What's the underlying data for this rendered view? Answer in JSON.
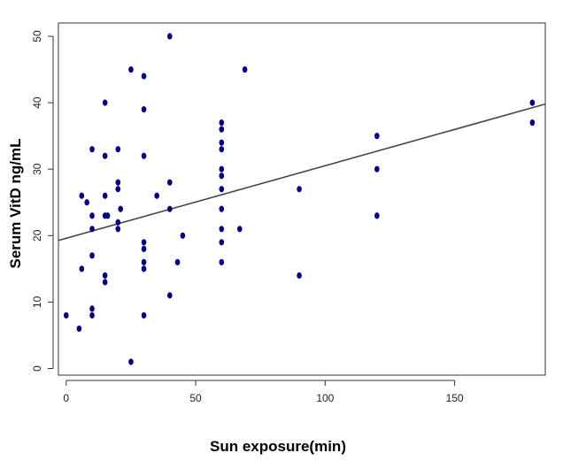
{
  "chart_data": {
    "type": "scatter",
    "title": "",
    "xlabel": "Sun exposure(min)",
    "ylabel": "Serum VitD ng/mL",
    "xlim": [
      -3,
      185
    ],
    "ylim": [
      -1,
      52
    ],
    "x_ticks": [
      0,
      50,
      100,
      150
    ],
    "y_ticks": [
      0,
      10,
      20,
      30,
      40,
      50
    ],
    "grid": false,
    "legend": "none",
    "point_color": "#00007f",
    "line_color": "#444444",
    "trend_line": {
      "intercept": 19.6,
      "slope": 0.1092
    },
    "points": [
      {
        "x": 0,
        "y": 8
      },
      {
        "x": 5,
        "y": 6
      },
      {
        "x": 6,
        "y": 15
      },
      {
        "x": 6,
        "y": 26
      },
      {
        "x": 8,
        "y": 25
      },
      {
        "x": 10,
        "y": 33
      },
      {
        "x": 10,
        "y": 23
      },
      {
        "x": 10,
        "y": 21
      },
      {
        "x": 10,
        "y": 17
      },
      {
        "x": 10,
        "y": 9
      },
      {
        "x": 10,
        "y": 8
      },
      {
        "x": 15,
        "y": 40
      },
      {
        "x": 15,
        "y": 32
      },
      {
        "x": 15,
        "y": 26
      },
      {
        "x": 15,
        "y": 23
      },
      {
        "x": 16,
        "y": 23
      },
      {
        "x": 15,
        "y": 14
      },
      {
        "x": 15,
        "y": 13
      },
      {
        "x": 20,
        "y": 33
      },
      {
        "x": 20,
        "y": 28
      },
      {
        "x": 20,
        "y": 27
      },
      {
        "x": 21,
        "y": 24
      },
      {
        "x": 20,
        "y": 22
      },
      {
        "x": 20,
        "y": 21
      },
      {
        "x": 25,
        "y": 45
      },
      {
        "x": 25,
        "y": 1
      },
      {
        "x": 30,
        "y": 44
      },
      {
        "x": 30,
        "y": 39
      },
      {
        "x": 30,
        "y": 32
      },
      {
        "x": 30,
        "y": 19
      },
      {
        "x": 30,
        "y": 18
      },
      {
        "x": 30,
        "y": 16
      },
      {
        "x": 30,
        "y": 15
      },
      {
        "x": 30,
        "y": 8
      },
      {
        "x": 35,
        "y": 26
      },
      {
        "x": 40,
        "y": 50
      },
      {
        "x": 40,
        "y": 28
      },
      {
        "x": 40,
        "y": 24
      },
      {
        "x": 40,
        "y": 11
      },
      {
        "x": 43,
        "y": 16
      },
      {
        "x": 45,
        "y": 20
      },
      {
        "x": 60,
        "y": 37
      },
      {
        "x": 60,
        "y": 36
      },
      {
        "x": 60,
        "y": 34
      },
      {
        "x": 60,
        "y": 33
      },
      {
        "x": 60,
        "y": 30
      },
      {
        "x": 60,
        "y": 29
      },
      {
        "x": 60,
        "y": 27
      },
      {
        "x": 60,
        "y": 24
      },
      {
        "x": 60,
        "y": 21
      },
      {
        "x": 60,
        "y": 19
      },
      {
        "x": 60,
        "y": 16
      },
      {
        "x": 67,
        "y": 21
      },
      {
        "x": 69,
        "y": 45
      },
      {
        "x": 90,
        "y": 27
      },
      {
        "x": 90,
        "y": 14
      },
      {
        "x": 120,
        "y": 35
      },
      {
        "x": 120,
        "y": 30
      },
      {
        "x": 120,
        "y": 23
      },
      {
        "x": 180,
        "y": 40
      },
      {
        "x": 180,
        "y": 37
      }
    ]
  }
}
